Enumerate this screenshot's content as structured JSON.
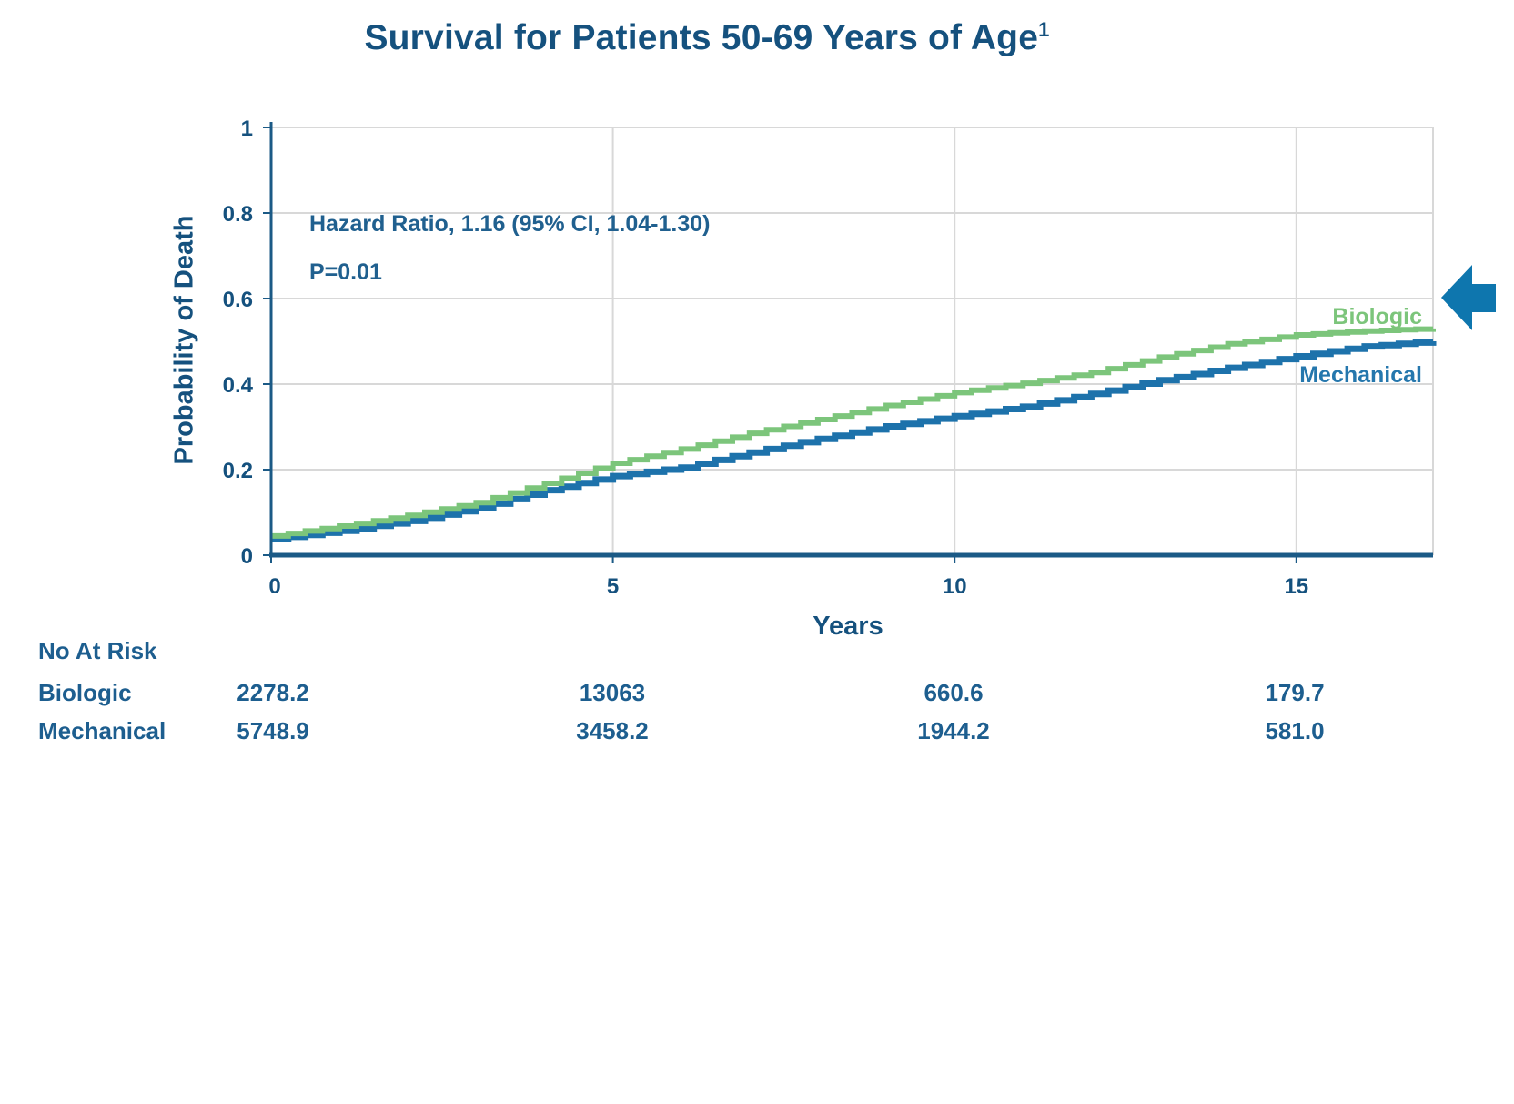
{
  "title": {
    "text": "Survival for Patients 50-69 Years of Age",
    "superscript": "1"
  },
  "colors": {
    "title_text": "#15517e",
    "axis": "#1b5a86",
    "tick_text": "#15517e",
    "grid": "#d8d8d8",
    "biologic": "#7cc57b",
    "mechanical": "#1d72ab",
    "arrow": "#0e76ae",
    "annotation_text": "#20608f",
    "table_text": "#1d5e8f"
  },
  "chart_data": {
    "type": "line",
    "subtype": "step",
    "title": "Survival for Patients 50-69 Years of Age¹",
    "xlabel": "Years",
    "ylabel": "Probability of Death",
    "xlim": [
      0,
      17
    ],
    "ylim": [
      0,
      1
    ],
    "grid": true,
    "x_ticks": [
      0,
      5,
      10,
      15
    ],
    "x_tick_labels": [
      "0",
      "5",
      "10",
      "15"
    ],
    "y_ticks": [
      0,
      0.2,
      0.4,
      0.6,
      0.8,
      1
    ],
    "y_tick_labels": [
      "0",
      "0.2",
      "0.4",
      "0.6",
      "0.8",
      "1"
    ],
    "annotation": {
      "line1": "Hazard Ratio, 1.16 (95% CI, 1.04-1.30)",
      "line2": "P=0.01"
    },
    "legend_position": "inline-right",
    "series": [
      {
        "name": "Biologic",
        "color": "#7cc57b",
        "x": [
          0,
          1,
          2,
          3,
          4,
          5,
          6,
          7,
          8,
          9,
          10,
          11,
          12,
          13,
          14,
          15,
          16,
          17
        ],
        "values": [
          0.045,
          0.068,
          0.093,
          0.123,
          0.168,
          0.215,
          0.248,
          0.285,
          0.317,
          0.35,
          0.38,
          0.402,
          0.427,
          0.463,
          0.494,
          0.515,
          0.524,
          0.53
        ]
      },
      {
        "name": "Mechanical",
        "color": "#1d72ab",
        "x": [
          0,
          1,
          2,
          3,
          4,
          5,
          6,
          7,
          8,
          9,
          10,
          11,
          12,
          13,
          14,
          15,
          16,
          17
        ],
        "values": [
          0.038,
          0.057,
          0.08,
          0.11,
          0.152,
          0.185,
          0.205,
          0.24,
          0.272,
          0.301,
          0.325,
          0.347,
          0.377,
          0.409,
          0.438,
          0.465,
          0.488,
          0.5
        ]
      }
    ]
  },
  "risk_table": {
    "header": "No At Risk",
    "rows": [
      {
        "label": "Biologic",
        "values": [
          "2278.2",
          "13063",
          "660.6",
          "179.7"
        ]
      },
      {
        "label": "Mechanical",
        "values": [
          "5748.9",
          "3458.2",
          "1944.2",
          "581.0"
        ]
      }
    ]
  },
  "arrow_icon": "left-arrow"
}
